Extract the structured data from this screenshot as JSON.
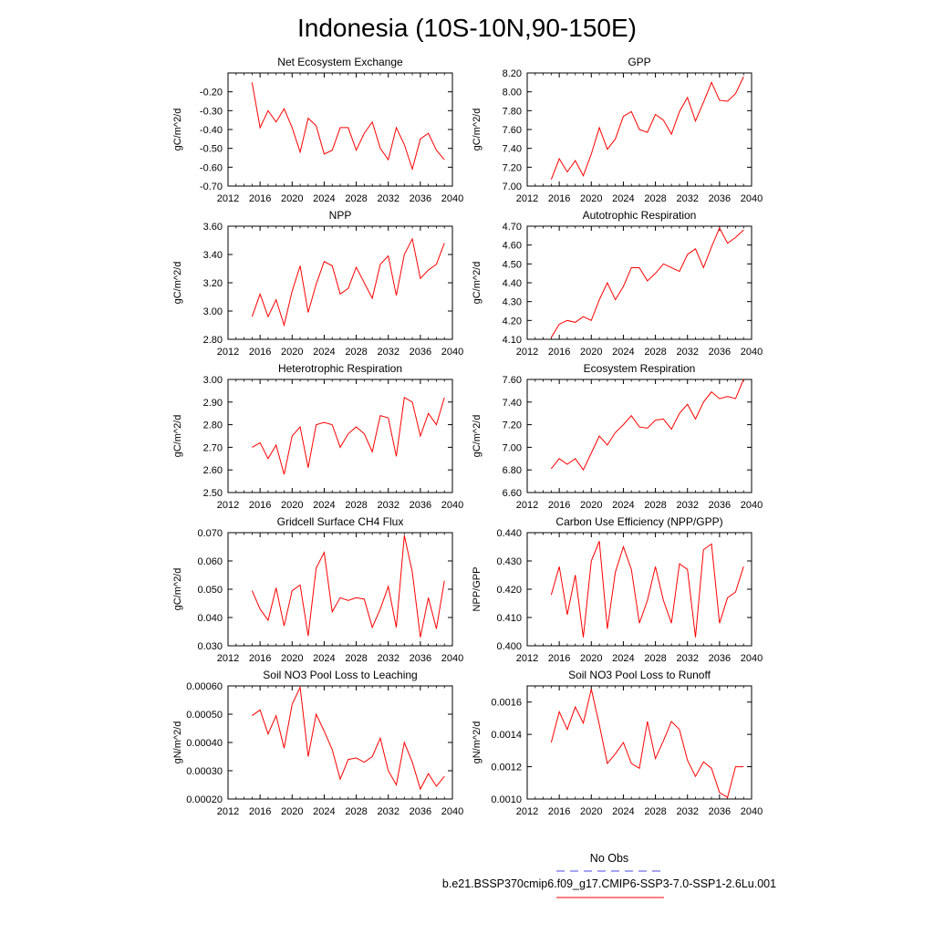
{
  "title": "Indonesia (10S-10N,90-150E)",
  "chart_data": [
    {
      "type": "line",
      "title": "Net Ecosystem Exchange",
      "ylabel": "gC/m^2/d",
      "xlim": [
        2012,
        2040
      ],
      "ylim": [
        -0.7,
        -0.1
      ],
      "xticks": [
        2012,
        2016,
        2020,
        2024,
        2028,
        2032,
        2036,
        2040
      ],
      "yticks": [
        -0.7,
        -0.6,
        -0.5,
        -0.4,
        -0.3,
        -0.2
      ],
      "yticklabels": [
        "-0.70",
        "-0.60",
        "-0.50",
        "-0.40",
        "-0.30",
        "-0.20"
      ],
      "x": [
        2015,
        2016,
        2017,
        2018,
        2019,
        2020,
        2021,
        2022,
        2023,
        2024,
        2025,
        2026,
        2027,
        2028,
        2029,
        2030,
        2031,
        2032,
        2033,
        2034,
        2035,
        2036,
        2037,
        2038,
        2039
      ],
      "series": [
        {
          "values": [
            -0.15,
            -0.39,
            -0.3,
            -0.36,
            -0.29,
            -0.39,
            -0.52,
            -0.34,
            -0.38,
            -0.53,
            -0.51,
            -0.39,
            -0.39,
            -0.51,
            -0.42,
            -0.36,
            -0.5,
            -0.56,
            -0.39,
            -0.48,
            -0.61,
            -0.45,
            -0.42,
            -0.51,
            -0.56
          ],
          "color": "#ff0000"
        }
      ]
    },
    {
      "type": "line",
      "title": "GPP",
      "ylabel": "gC/m^2/d",
      "xlim": [
        2012,
        2040
      ],
      "ylim": [
        7.0,
        8.2
      ],
      "xticks": [
        2012,
        2016,
        2020,
        2024,
        2028,
        2032,
        2036,
        2040
      ],
      "yticks": [
        7.0,
        7.2,
        7.4,
        7.6,
        7.8,
        8.0,
        8.2
      ],
      "yticklabels": [
        "7.00",
        "7.20",
        "7.40",
        "7.60",
        "7.80",
        "8.00",
        "8.20"
      ],
      "x": [
        2015,
        2016,
        2017,
        2018,
        2019,
        2020,
        2021,
        2022,
        2023,
        2024,
        2025,
        2026,
        2027,
        2028,
        2029,
        2030,
        2031,
        2032,
        2033,
        2034,
        2035,
        2036,
        2037,
        2038,
        2039
      ],
      "series": [
        {
          "values": [
            7.07,
            7.29,
            7.15,
            7.27,
            7.11,
            7.34,
            7.62,
            7.39,
            7.5,
            7.74,
            7.79,
            7.6,
            7.57,
            7.76,
            7.7,
            7.55,
            7.79,
            7.94,
            7.69,
            7.89,
            8.1,
            7.91,
            7.9,
            7.98,
            8.16
          ],
          "color": "#ff0000"
        }
      ]
    },
    {
      "type": "line",
      "title": "NPP",
      "ylabel": "gC/m^2/d",
      "xlim": [
        2012,
        2040
      ],
      "ylim": [
        2.8,
        3.6
      ],
      "xticks": [
        2012,
        2016,
        2020,
        2024,
        2028,
        2032,
        2036,
        2040
      ],
      "yticks": [
        2.8,
        3.0,
        3.2,
        3.4,
        3.6
      ],
      "yticklabels": [
        "2.80",
        "3.00",
        "3.20",
        "3.40",
        "3.60"
      ],
      "x": [
        2015,
        2016,
        2017,
        2018,
        2019,
        2020,
        2021,
        2022,
        2023,
        2024,
        2025,
        2026,
        2027,
        2028,
        2029,
        2030,
        2031,
        2032,
        2033,
        2034,
        2035,
        2036,
        2037,
        2038,
        2039
      ],
      "series": [
        {
          "values": [
            2.96,
            3.12,
            2.96,
            3.08,
            2.9,
            3.14,
            3.32,
            2.99,
            3.19,
            3.35,
            3.32,
            3.12,
            3.16,
            3.31,
            3.2,
            3.09,
            3.33,
            3.39,
            3.11,
            3.4,
            3.51,
            3.23,
            3.29,
            3.33,
            3.48
          ],
          "color": "#ff0000"
        }
      ]
    },
    {
      "type": "line",
      "title": "Autotrophic Respiration",
      "ylabel": "gC/m^2/d",
      "xlim": [
        2012,
        2040
      ],
      "ylim": [
        4.1,
        4.7
      ],
      "xticks": [
        2012,
        2016,
        2020,
        2024,
        2028,
        2032,
        2036,
        2040
      ],
      "yticks": [
        4.1,
        4.2,
        4.3,
        4.4,
        4.5,
        4.6,
        4.7
      ],
      "yticklabels": [
        "4.10",
        "4.20",
        "4.30",
        "4.40",
        "4.50",
        "4.60",
        "4.70"
      ],
      "x": [
        2015,
        2016,
        2017,
        2018,
        2019,
        2020,
        2021,
        2022,
        2023,
        2024,
        2025,
        2026,
        2027,
        2028,
        2029,
        2030,
        2031,
        2032,
        2033,
        2034,
        2035,
        2036,
        2037,
        2038,
        2039
      ],
      "series": [
        {
          "values": [
            4.11,
            4.18,
            4.2,
            4.19,
            4.22,
            4.2,
            4.31,
            4.4,
            4.31,
            4.38,
            4.48,
            4.48,
            4.41,
            4.45,
            4.5,
            4.48,
            4.46,
            4.55,
            4.58,
            4.48,
            4.59,
            4.69,
            4.61,
            4.64,
            4.68
          ],
          "color": "#ff0000"
        }
      ]
    },
    {
      "type": "line",
      "title": "Heterotrophic Respiration",
      "ylabel": "gC/m^2/d",
      "xlim": [
        2012,
        2040
      ],
      "ylim": [
        2.5,
        3.0
      ],
      "xticks": [
        2012,
        2016,
        2020,
        2024,
        2028,
        2032,
        2036,
        2040
      ],
      "yticks": [
        2.5,
        2.6,
        2.7,
        2.8,
        2.9,
        3.0
      ],
      "yticklabels": [
        "2.50",
        "2.60",
        "2.70",
        "2.80",
        "2.90",
        "3.00"
      ],
      "x": [
        2015,
        2016,
        2017,
        2018,
        2019,
        2020,
        2021,
        2022,
        2023,
        2024,
        2025,
        2026,
        2027,
        2028,
        2029,
        2030,
        2031,
        2032,
        2033,
        2034,
        2035,
        2036,
        2037,
        2038,
        2039
      ],
      "series": [
        {
          "values": [
            2.7,
            2.72,
            2.65,
            2.71,
            2.58,
            2.75,
            2.79,
            2.61,
            2.8,
            2.81,
            2.8,
            2.7,
            2.76,
            2.79,
            2.76,
            2.68,
            2.84,
            2.83,
            2.66,
            2.92,
            2.9,
            2.75,
            2.85,
            2.8,
            2.92
          ],
          "color": "#ff0000"
        }
      ]
    },
    {
      "type": "line",
      "title": "Ecosystem Respiration",
      "ylabel": "gC/m^2/d",
      "xlim": [
        2012,
        2040
      ],
      "ylim": [
        6.6,
        7.6
      ],
      "xticks": [
        2012,
        2016,
        2020,
        2024,
        2028,
        2032,
        2036,
        2040
      ],
      "yticks": [
        6.6,
        6.8,
        7.0,
        7.2,
        7.4,
        7.6
      ],
      "yticklabels": [
        "6.60",
        "6.80",
        "7.00",
        "7.20",
        "7.40",
        "7.60"
      ],
      "x": [
        2015,
        2016,
        2017,
        2018,
        2019,
        2020,
        2021,
        2022,
        2023,
        2024,
        2025,
        2026,
        2027,
        2028,
        2029,
        2030,
        2031,
        2032,
        2033,
        2034,
        2035,
        2036,
        2037,
        2038,
        2039
      ],
      "series": [
        {
          "values": [
            6.81,
            6.9,
            6.85,
            6.9,
            6.8,
            6.95,
            7.1,
            7.02,
            7.13,
            7.2,
            7.28,
            7.18,
            7.17,
            7.24,
            7.25,
            7.16,
            7.3,
            7.38,
            7.25,
            7.4,
            7.49,
            7.43,
            7.45,
            7.43,
            7.6
          ],
          "color": "#ff0000"
        }
      ]
    },
    {
      "type": "line",
      "title": "Gridcell Surface CH4 Flux",
      "ylabel": "gC/m^2/d",
      "xlim": [
        2012,
        2040
      ],
      "ylim": [
        0.03,
        0.07
      ],
      "xticks": [
        2012,
        2016,
        2020,
        2024,
        2028,
        2032,
        2036,
        2040
      ],
      "yticks": [
        0.03,
        0.04,
        0.05,
        0.06,
        0.07
      ],
      "yticklabels": [
        "0.030",
        "0.040",
        "0.050",
        "0.060",
        "0.070"
      ],
      "x": [
        2015,
        2016,
        2017,
        2018,
        2019,
        2020,
        2021,
        2022,
        2023,
        2024,
        2025,
        2026,
        2027,
        2028,
        2029,
        2030,
        2031,
        2032,
        2033,
        2034,
        2035,
        2036,
        2037,
        2038,
        2039
      ],
      "series": [
        {
          "values": [
            0.0495,
            0.043,
            0.039,
            0.0505,
            0.037,
            0.0495,
            0.0515,
            0.0335,
            0.0575,
            0.063,
            0.042,
            0.047,
            0.046,
            0.047,
            0.0465,
            0.0365,
            0.043,
            0.051,
            0.0365,
            0.069,
            0.056,
            0.033,
            0.047,
            0.036,
            0.053
          ],
          "color": "#ff0000"
        }
      ]
    },
    {
      "type": "line",
      "title": "Carbon Use Efficiency (NPP/GPP)",
      "ylabel": "NPP/GPP",
      "xlim": [
        2012,
        2040
      ],
      "ylim": [
        0.4,
        0.44
      ],
      "xticks": [
        2012,
        2016,
        2020,
        2024,
        2028,
        2032,
        2036,
        2040
      ],
      "yticks": [
        0.4,
        0.41,
        0.42,
        0.43,
        0.44
      ],
      "yticklabels": [
        "0.400",
        "0.410",
        "0.420",
        "0.430",
        "0.440"
      ],
      "x": [
        2015,
        2016,
        2017,
        2018,
        2019,
        2020,
        2021,
        2022,
        2023,
        2024,
        2025,
        2026,
        2027,
        2028,
        2029,
        2030,
        2031,
        2032,
        2033,
        2034,
        2035,
        2036,
        2037,
        2038,
        2039
      ],
      "series": [
        {
          "values": [
            0.418,
            0.428,
            0.411,
            0.425,
            0.403,
            0.43,
            0.437,
            0.406,
            0.426,
            0.435,
            0.427,
            0.408,
            0.416,
            0.428,
            0.416,
            0.408,
            0.429,
            0.427,
            0.403,
            0.434,
            0.436,
            0.408,
            0.417,
            0.419,
            0.428
          ],
          "color": "#ff0000"
        }
      ]
    },
    {
      "type": "line",
      "title": "Soil NO3 Pool Loss to Leaching",
      "ylabel": "gN/m^2/d",
      "xlim": [
        2012,
        2040
      ],
      "ylim": [
        0.0002,
        0.0006
      ],
      "xticks": [
        2012,
        2016,
        2020,
        2024,
        2028,
        2032,
        2036,
        2040
      ],
      "yticks": [
        0.0002,
        0.0003,
        0.0004,
        0.0005,
        0.0006
      ],
      "yticklabels": [
        "0.00020",
        "0.00030",
        "0.00040",
        "0.00050",
        "0.00060"
      ],
      "x": [
        2015,
        2016,
        2017,
        2018,
        2019,
        2020,
        2021,
        2022,
        2023,
        2024,
        2025,
        2026,
        2027,
        2028,
        2029,
        2030,
        2031,
        2032,
        2033,
        2034,
        2035,
        2036,
        2037,
        2038,
        2039
      ],
      "series": [
        {
          "values": [
            0.000495,
            0.000515,
            0.00043,
            0.000495,
            0.00038,
            0.000535,
            0.000595,
            0.00035,
            0.0005,
            0.00044,
            0.000375,
            0.00027,
            0.00034,
            0.000345,
            0.00033,
            0.00035,
            0.000415,
            0.0003,
            0.00025,
            0.0004,
            0.00033,
            0.000235,
            0.00029,
            0.000245,
            0.00028
          ],
          "color": "#ff0000"
        }
      ]
    },
    {
      "type": "line",
      "title": "Soil NO3 Pool Loss to Runoff",
      "ylabel": "gN/m^2/d",
      "xlim": [
        2012,
        2040
      ],
      "ylim": [
        0.001,
        0.0017
      ],
      "xticks": [
        2012,
        2016,
        2020,
        2024,
        2028,
        2032,
        2036,
        2040
      ],
      "yticks": [
        0.001,
        0.0012,
        0.0014,
        0.0016
      ],
      "yticklabels": [
        "0.0010",
        "0.0012",
        "0.0014",
        "0.0016"
      ],
      "x": [
        2015,
        2016,
        2017,
        2018,
        2019,
        2020,
        2021,
        2022,
        2023,
        2024,
        2025,
        2026,
        2027,
        2028,
        2029,
        2030,
        2031,
        2032,
        2033,
        2034,
        2035,
        2036,
        2037,
        2038,
        2039
      ],
      "series": [
        {
          "values": [
            0.00135,
            0.00154,
            0.00143,
            0.00157,
            0.00147,
            0.00168,
            0.00146,
            0.00122,
            0.00128,
            0.00135,
            0.00122,
            0.00119,
            0.00148,
            0.00125,
            0.00136,
            0.00148,
            0.00143,
            0.00124,
            0.00114,
            0.00123,
            0.00119,
            0.00104,
            0.00101,
            0.0012,
            0.0012
          ],
          "color": "#ff0000"
        }
      ]
    }
  ],
  "legend": [
    {
      "label": "No Obs",
      "color": "#4a4ae0",
      "style": "dashed"
    },
    {
      "label": "b.e21.BSSP370cmip6.f09_g17.CMIP6-SSP3-7.0-SSP1-2.6Lu.001",
      "color": "#ff0000",
      "style": "solid"
    }
  ]
}
